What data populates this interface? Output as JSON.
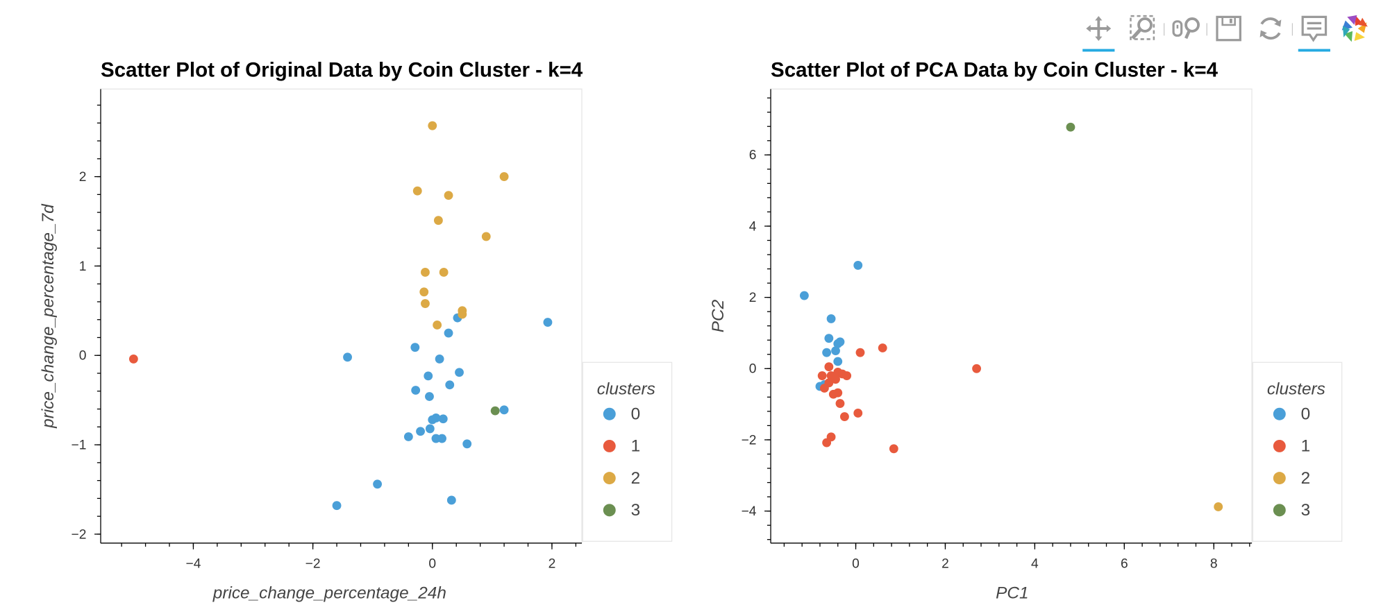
{
  "toolbar": {
    "tools": [
      {
        "name": "pan-tool-icon",
        "active": true
      },
      {
        "name": "box-zoom-tool-icon",
        "active": false
      },
      {
        "name": "wheel-zoom-tool-icon",
        "active": false
      },
      {
        "name": "save-tool-icon",
        "active": false
      },
      {
        "name": "reset-tool-icon",
        "active": false
      },
      {
        "name": "hover-tool-icon",
        "active": true
      },
      {
        "name": "bokeh-logo-icon",
        "active": false
      }
    ]
  },
  "cluster_colors": {
    "0": "#4a9fd8",
    "1": "#e85a3d",
    "2": "#dca945",
    "3": "#6b8f51"
  },
  "chart_data": [
    {
      "type": "scatter",
      "title": "Scatter Plot of Original Data by Coin Cluster - k=4",
      "xlabel": "price_change_percentage_24h",
      "ylabel": "price_change_percentage_7d",
      "xlim": [
        -5.55,
        2.5
      ],
      "ylim": [
        -2.1,
        2.98
      ],
      "xticks": [
        -4,
        -2,
        0,
        2
      ],
      "yticks": [
        -2,
        -1,
        0,
        1,
        2
      ],
      "legend_title": "clusters",
      "legend_position": "right",
      "grid": false,
      "series": [
        {
          "name": "0",
          "points": [
            [
              1.93,
              0.37
            ],
            [
              1.2,
              -0.61
            ],
            [
              0.42,
              0.42
            ],
            [
              0.27,
              0.25
            ],
            [
              -0.29,
              0.09
            ],
            [
              -1.42,
              -0.02
            ],
            [
              0.12,
              -0.04
            ],
            [
              0.45,
              -0.19
            ],
            [
              -0.07,
              -0.23
            ],
            [
              0.29,
              -0.33
            ],
            [
              -0.28,
              -0.39
            ],
            [
              -0.05,
              -0.46
            ],
            [
              0.06,
              -0.7
            ],
            [
              0.18,
              -0.71
            ],
            [
              0.0,
              -0.72
            ],
            [
              -0.04,
              -0.82
            ],
            [
              -0.2,
              -0.85
            ],
            [
              -0.4,
              -0.91
            ],
            [
              0.06,
              -0.93
            ],
            [
              0.16,
              -0.93
            ],
            [
              0.58,
              -0.99
            ],
            [
              -0.92,
              -1.44
            ],
            [
              -1.6,
              -1.68
            ],
            [
              0.32,
              -1.62
            ]
          ]
        },
        {
          "name": "1",
          "points": [
            [
              -5.0,
              -0.04
            ]
          ]
        },
        {
          "name": "2",
          "points": [
            [
              0.0,
              2.57
            ],
            [
              1.2,
              2.0
            ],
            [
              -0.25,
              1.84
            ],
            [
              0.27,
              1.79
            ],
            [
              0.1,
              1.51
            ],
            [
              0.9,
              1.33
            ],
            [
              -0.12,
              0.93
            ],
            [
              0.19,
              0.93
            ],
            [
              -0.14,
              0.71
            ],
            [
              -0.12,
              0.58
            ],
            [
              0.5,
              0.5
            ],
            [
              0.5,
              0.46
            ],
            [
              0.08,
              0.34
            ]
          ]
        },
        {
          "name": "3",
          "points": [
            [
              1.05,
              -0.62
            ]
          ]
        }
      ]
    },
    {
      "type": "scatter",
      "title": "Scatter Plot of PCA Data by Coin Cluster - k=4",
      "xlabel": "PC1",
      "ylabel": "PC2",
      "xlim": [
        -1.9,
        8.85
      ],
      "ylim": [
        -4.9,
        7.85
      ],
      "xticks": [
        0,
        2,
        4,
        6,
        8
      ],
      "yticks": [
        -4,
        -2,
        0,
        2,
        4,
        6
      ],
      "legend_title": "clusters",
      "legend_position": "right",
      "grid": false,
      "series": [
        {
          "name": "0",
          "points": [
            [
              0.05,
              2.9
            ],
            [
              -1.15,
              2.05
            ],
            [
              -0.55,
              1.4
            ],
            [
              -0.6,
              0.85
            ],
            [
              -0.35,
              0.75
            ],
            [
              -0.4,
              0.7
            ],
            [
              -0.45,
              0.5
            ],
            [
              -0.65,
              0.45
            ],
            [
              -0.4,
              0.2
            ],
            [
              -0.8,
              -0.5
            ],
            [
              -0.7,
              -0.45
            ]
          ]
        },
        {
          "name": "1",
          "points": [
            [
              0.6,
              0.58
            ],
            [
              0.1,
              0.45
            ],
            [
              -0.6,
              0.05
            ],
            [
              -0.4,
              -0.1
            ],
            [
              -0.3,
              -0.15
            ],
            [
              -0.2,
              -0.2
            ],
            [
              -0.55,
              -0.2
            ],
            [
              -0.75,
              -0.2
            ],
            [
              -0.45,
              -0.3
            ],
            [
              -0.6,
              -0.4
            ],
            [
              -0.7,
              -0.55
            ],
            [
              -0.4,
              -0.68
            ],
            [
              -0.5,
              -0.72
            ],
            [
              -0.35,
              -0.98
            ],
            [
              0.05,
              -1.25
            ],
            [
              -0.25,
              -1.35
            ],
            [
              -0.55,
              -1.92
            ],
            [
              -0.65,
              -2.08
            ],
            [
              0.85,
              -2.25
            ],
            [
              2.7,
              0.0
            ]
          ]
        },
        {
          "name": "2",
          "points": [
            [
              8.1,
              -3.88
            ]
          ]
        },
        {
          "name": "3",
          "points": [
            [
              4.8,
              6.78
            ]
          ]
        }
      ]
    }
  ]
}
